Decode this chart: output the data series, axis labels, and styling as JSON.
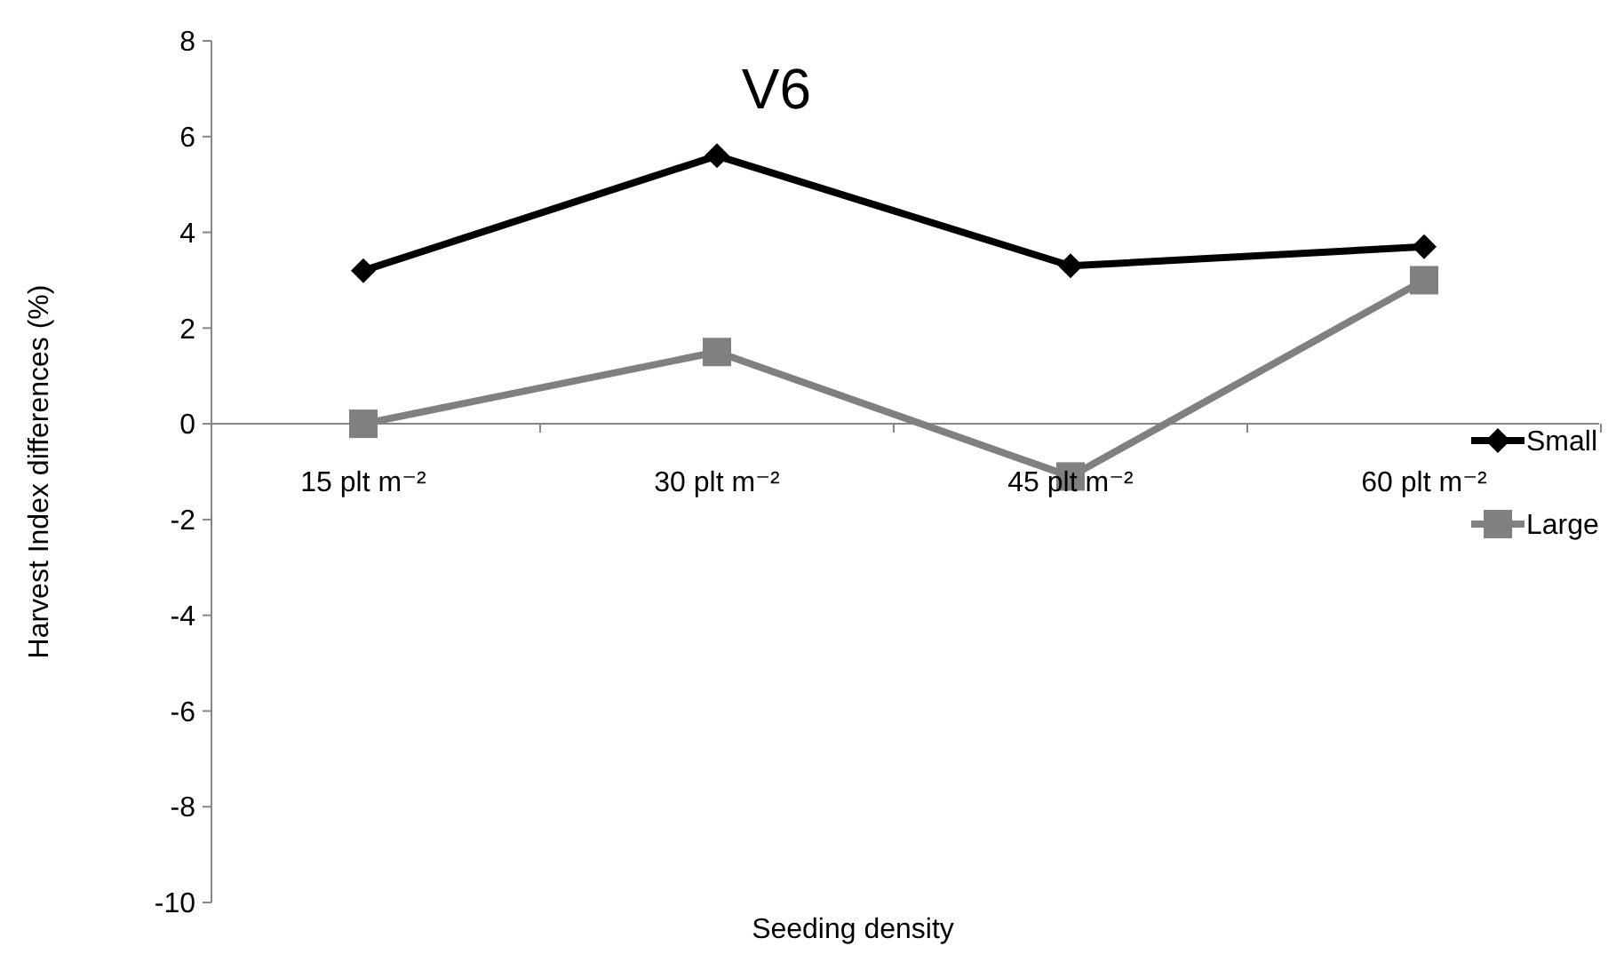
{
  "chart_data": {
    "type": "line",
    "title": "V6",
    "xlabel": "Seeding density",
    "ylabel": "Harvest Index differences (%)",
    "categories": [
      "15 plt m⁻²",
      "30 plt m⁻²",
      "45 plt m⁻²",
      "60 plt m⁻²"
    ],
    "series": [
      {
        "name": "Small",
        "color": "#000000",
        "marker": "diamond",
        "values": [
          3.2,
          5.6,
          3.3,
          3.7
        ]
      },
      {
        "name": "Large",
        "color": "#808080",
        "marker": "square",
        "values": [
          0,
          1.5,
          -1.1,
          3.0
        ]
      }
    ],
    "ylim": [
      -10,
      8
    ],
    "yticks": [
      -10,
      -8,
      -6,
      -4,
      -2,
      0,
      2,
      4,
      6,
      8
    ],
    "grid": false,
    "legend": "right",
    "line_style": "solid"
  }
}
